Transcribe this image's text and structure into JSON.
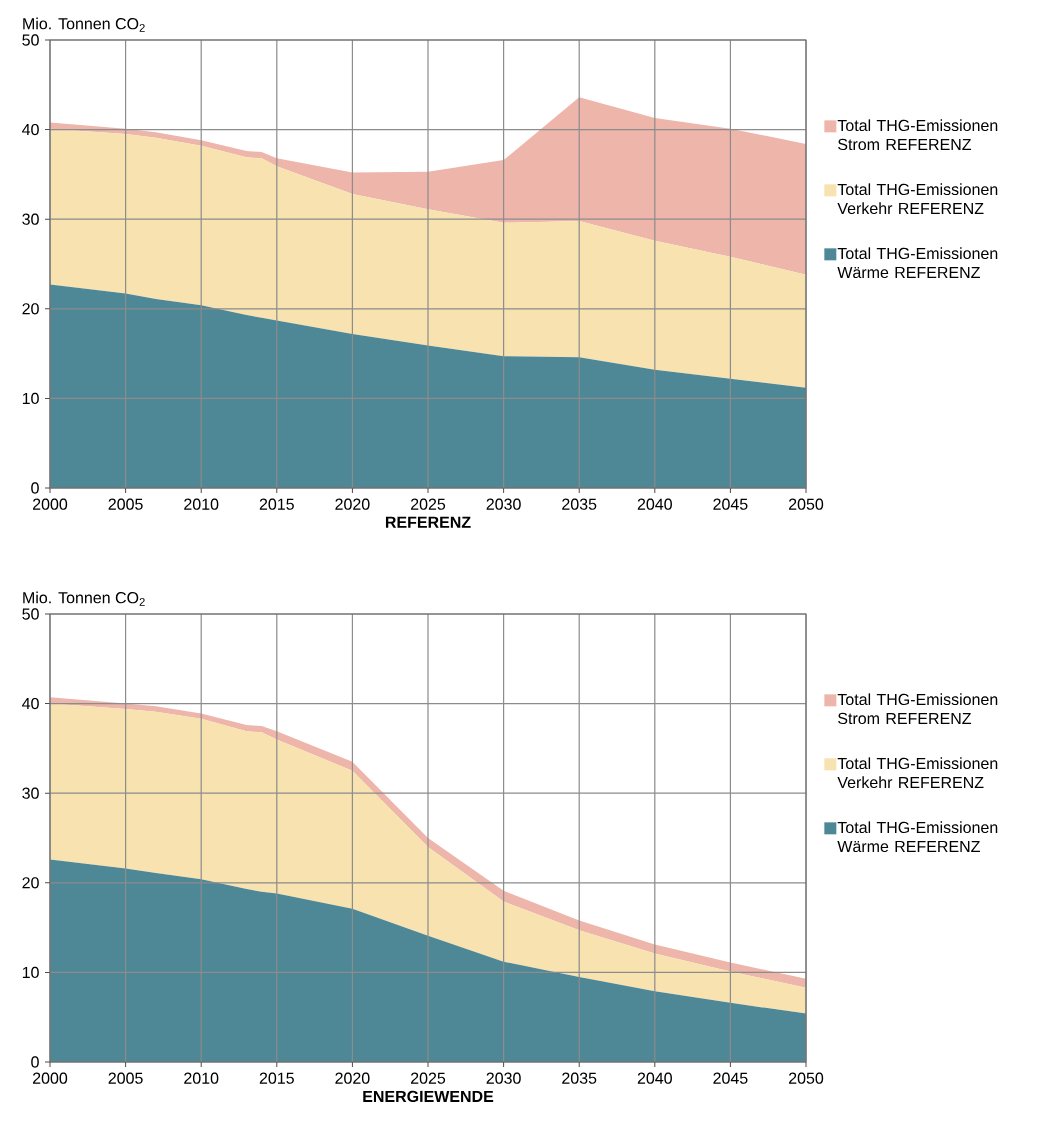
{
  "chart_data": [
    {
      "type": "area",
      "stacked": true,
      "ylabel": "Mio. Tonnen CO$_{2}$",
      "xlabel": "REFERENZ",
      "x": [
        2000,
        2005,
        2007,
        2010,
        2013,
        2014,
        2015,
        2020,
        2025,
        2030,
        2035,
        2040,
        2045,
        2050
      ],
      "series": [
        {
          "name": "Total THG-Emissionen Wärme REFERENZ",
          "color": "#4e8795",
          "values": [
            22.7,
            21.7,
            21.1,
            20.4,
            19.3,
            19.0,
            18.7,
            17.2,
            15.9,
            14.7,
            14.6,
            13.2,
            12.2,
            11.2
          ]
        },
        {
          "name": "Total THG-Emissionen Verkehr REFERENZ",
          "color": "#f7e2b0",
          "values": [
            17.4,
            17.8,
            18.0,
            17.8,
            17.6,
            17.8,
            17.2,
            15.6,
            15.2,
            14.9,
            15.2,
            14.4,
            13.6,
            12.6
          ]
        },
        {
          "name": "Total THG-Emissionen Strom REFERENZ",
          "color": "#eeb5ab",
          "values": [
            0.7,
            0.6,
            0.6,
            0.6,
            0.7,
            0.7,
            0.9,
            2.4,
            4.2,
            7.0,
            13.8,
            13.7,
            14.3,
            14.6
          ]
        }
      ],
      "xlim": [
        2000,
        2050
      ],
      "ylim": [
        0,
        50
      ],
      "xticks": [
        2000,
        2005,
        2010,
        2015,
        2020,
        2025,
        2030,
        2035,
        2040,
        2045,
        2050
      ],
      "yticks": [
        0,
        10,
        20,
        30,
        40,
        50
      ],
      "grid": true,
      "legend": "right"
    },
    {
      "type": "area",
      "stacked": true,
      "ylabel": "Mio. Tonnen CO$_{2}$",
      "xlabel": "ENERGIEWENDE",
      "x": [
        2000,
        2005,
        2007,
        2010,
        2013,
        2014,
        2015,
        2020,
        2025,
        2030,
        2035,
        2040,
        2045,
        2050
      ],
      "series": [
        {
          "name": "Total THG-Emissionen Wärme REFERENZ",
          "color": "#4e8795",
          "values": [
            22.6,
            21.6,
            21.1,
            20.4,
            19.3,
            19.0,
            18.8,
            17.1,
            14.1,
            11.2,
            9.5,
            7.9,
            6.6,
            5.4
          ]
        },
        {
          "name": "Total THG-Emissionen Verkehr REFERENZ",
          "color": "#f7e2b0",
          "values": [
            17.4,
            17.8,
            18.0,
            17.9,
            17.6,
            17.8,
            17.2,
            15.4,
            9.9,
            6.7,
            5.2,
            4.2,
            3.5,
            2.9
          ]
        },
        {
          "name": "Total THG-Emissionen Strom REFERENZ",
          "color": "#eeb5ab",
          "values": [
            0.7,
            0.6,
            0.6,
            0.6,
            0.7,
            0.7,
            0.9,
            1.0,
            1.0,
            1.2,
            1.1,
            1.0,
            1.0,
            1.0
          ]
        }
      ],
      "xlim": [
        2000,
        2050
      ],
      "ylim": [
        0,
        50
      ],
      "xticks": [
        2000,
        2005,
        2010,
        2015,
        2020,
        2025,
        2030,
        2035,
        2040,
        2045,
        2050
      ],
      "yticks": [
        0,
        10,
        20,
        30,
        40,
        50
      ],
      "grid": true,
      "legend": "right"
    }
  ]
}
